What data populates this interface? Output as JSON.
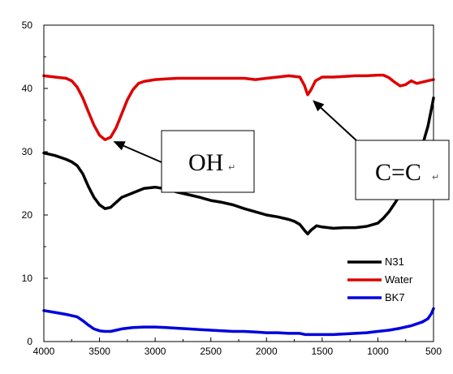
{
  "chart_data": {
    "type": "line",
    "title": "",
    "xlabel": "",
    "ylabel": "",
    "xlim": [
      4000,
      500
    ],
    "ylim": [
      0,
      50
    ],
    "x_ticks": [
      "4000",
      "3500",
      "3000",
      "2500",
      "2000",
      "1500",
      "1000",
      "500"
    ],
    "y_ticks": [
      "0",
      "10",
      "20",
      "30",
      "40",
      "50"
    ],
    "grid": false,
    "legend_position": "bottom-right",
    "series": [
      {
        "name": "N31",
        "color": "#000000",
        "points": [
          [
            4000,
            29.8
          ],
          [
            3900,
            29.4
          ],
          [
            3800,
            28.8
          ],
          [
            3750,
            28.4
          ],
          [
            3700,
            27.8
          ],
          [
            3650,
            26.5
          ],
          [
            3600,
            24.5
          ],
          [
            3550,
            22.8
          ],
          [
            3500,
            21.6
          ],
          [
            3450,
            21.0
          ],
          [
            3400,
            21.2
          ],
          [
            3350,
            22.0
          ],
          [
            3300,
            22.8
          ],
          [
            3200,
            23.5
          ],
          [
            3100,
            24.2
          ],
          [
            3000,
            24.4
          ],
          [
            2900,
            24.1
          ],
          [
            2800,
            23.6
          ],
          [
            2700,
            23.2
          ],
          [
            2600,
            22.8
          ],
          [
            2500,
            22.3
          ],
          [
            2400,
            22.0
          ],
          [
            2300,
            21.6
          ],
          [
            2200,
            21.0
          ],
          [
            2100,
            20.5
          ],
          [
            2000,
            20.0
          ],
          [
            1900,
            19.7
          ],
          [
            1800,
            19.3
          ],
          [
            1750,
            19.0
          ],
          [
            1700,
            18.5
          ],
          [
            1660,
            17.6
          ],
          [
            1630,
            17.0
          ],
          [
            1600,
            17.6
          ],
          [
            1550,
            18.3
          ],
          [
            1500,
            18.1
          ],
          [
            1400,
            17.9
          ],
          [
            1300,
            18.0
          ],
          [
            1200,
            18.0
          ],
          [
            1100,
            18.2
          ],
          [
            1000,
            18.7
          ],
          [
            950,
            19.5
          ],
          [
            900,
            20.5
          ],
          [
            850,
            21.8
          ],
          [
            800,
            23.2
          ],
          [
            750,
            24.8
          ],
          [
            700,
            26.5
          ],
          [
            650,
            28.5
          ],
          [
            600,
            31.0
          ],
          [
            550,
            34.0
          ],
          [
            510,
            37.5
          ],
          [
            500,
            38.5
          ]
        ]
      },
      {
        "name": "Water",
        "color": "#dd0000",
        "points": [
          [
            4000,
            42.0
          ],
          [
            3900,
            41.8
          ],
          [
            3800,
            41.6
          ],
          [
            3750,
            41.2
          ],
          [
            3700,
            40.2
          ],
          [
            3650,
            38.5
          ],
          [
            3600,
            36.3
          ],
          [
            3550,
            34.2
          ],
          [
            3500,
            32.6
          ],
          [
            3450,
            31.9
          ],
          [
            3400,
            32.3
          ],
          [
            3350,
            33.8
          ],
          [
            3300,
            36.0
          ],
          [
            3250,
            38.2
          ],
          [
            3200,
            39.8
          ],
          [
            3150,
            40.8
          ],
          [
            3100,
            41.1
          ],
          [
            3000,
            41.4
          ],
          [
            2900,
            41.5
          ],
          [
            2800,
            41.6
          ],
          [
            2600,
            41.6
          ],
          [
            2400,
            41.6
          ],
          [
            2200,
            41.6
          ],
          [
            2100,
            41.4
          ],
          [
            2000,
            41.6
          ],
          [
            1900,
            41.8
          ],
          [
            1800,
            42.0
          ],
          [
            1700,
            41.8
          ],
          [
            1660,
            40.5
          ],
          [
            1630,
            39.0
          ],
          [
            1600,
            39.8
          ],
          [
            1560,
            41.2
          ],
          [
            1500,
            41.8
          ],
          [
            1400,
            41.8
          ],
          [
            1300,
            41.9
          ],
          [
            1200,
            42.0
          ],
          [
            1100,
            42.0
          ],
          [
            1000,
            42.1
          ],
          [
            950,
            42.1
          ],
          [
            900,
            41.7
          ],
          [
            850,
            41.0
          ],
          [
            800,
            40.4
          ],
          [
            750,
            40.6
          ],
          [
            700,
            41.2
          ],
          [
            650,
            40.8
          ],
          [
            600,
            41.0
          ],
          [
            550,
            41.2
          ],
          [
            500,
            41.4
          ]
        ]
      },
      {
        "name": "BK7",
        "color": "#0000dd",
        "points": [
          [
            4000,
            4.9
          ],
          [
            3900,
            4.6
          ],
          [
            3800,
            4.3
          ],
          [
            3700,
            3.9
          ],
          [
            3650,
            3.3
          ],
          [
            3600,
            2.6
          ],
          [
            3550,
            2.0
          ],
          [
            3500,
            1.7
          ],
          [
            3450,
            1.6
          ],
          [
            3400,
            1.6
          ],
          [
            3350,
            1.8
          ],
          [
            3300,
            2.0
          ],
          [
            3200,
            2.2
          ],
          [
            3100,
            2.3
          ],
          [
            3000,
            2.3
          ],
          [
            2900,
            2.2
          ],
          [
            2800,
            2.1
          ],
          [
            2700,
            2.0
          ],
          [
            2600,
            1.9
          ],
          [
            2500,
            1.8
          ],
          [
            2400,
            1.7
          ],
          [
            2300,
            1.6
          ],
          [
            2200,
            1.6
          ],
          [
            2100,
            1.5
          ],
          [
            2000,
            1.4
          ],
          [
            1900,
            1.4
          ],
          [
            1800,
            1.3
          ],
          [
            1700,
            1.3
          ],
          [
            1650,
            1.1
          ],
          [
            1600,
            1.1
          ],
          [
            1500,
            1.1
          ],
          [
            1400,
            1.1
          ],
          [
            1300,
            1.2
          ],
          [
            1200,
            1.3
          ],
          [
            1100,
            1.4
          ],
          [
            1000,
            1.6
          ],
          [
            900,
            1.8
          ],
          [
            800,
            2.1
          ],
          [
            700,
            2.5
          ],
          [
            650,
            2.8
          ],
          [
            600,
            3.1
          ],
          [
            550,
            3.6
          ],
          [
            520,
            4.4
          ],
          [
            500,
            5.2
          ]
        ]
      }
    ],
    "annotations": [
      {
        "text": "OH",
        "mark": "↵",
        "target": [
          3450,
          31.9
        ]
      },
      {
        "text": "C=C",
        "mark": "↵",
        "target": [
          1630,
          38.8
        ]
      }
    ]
  }
}
